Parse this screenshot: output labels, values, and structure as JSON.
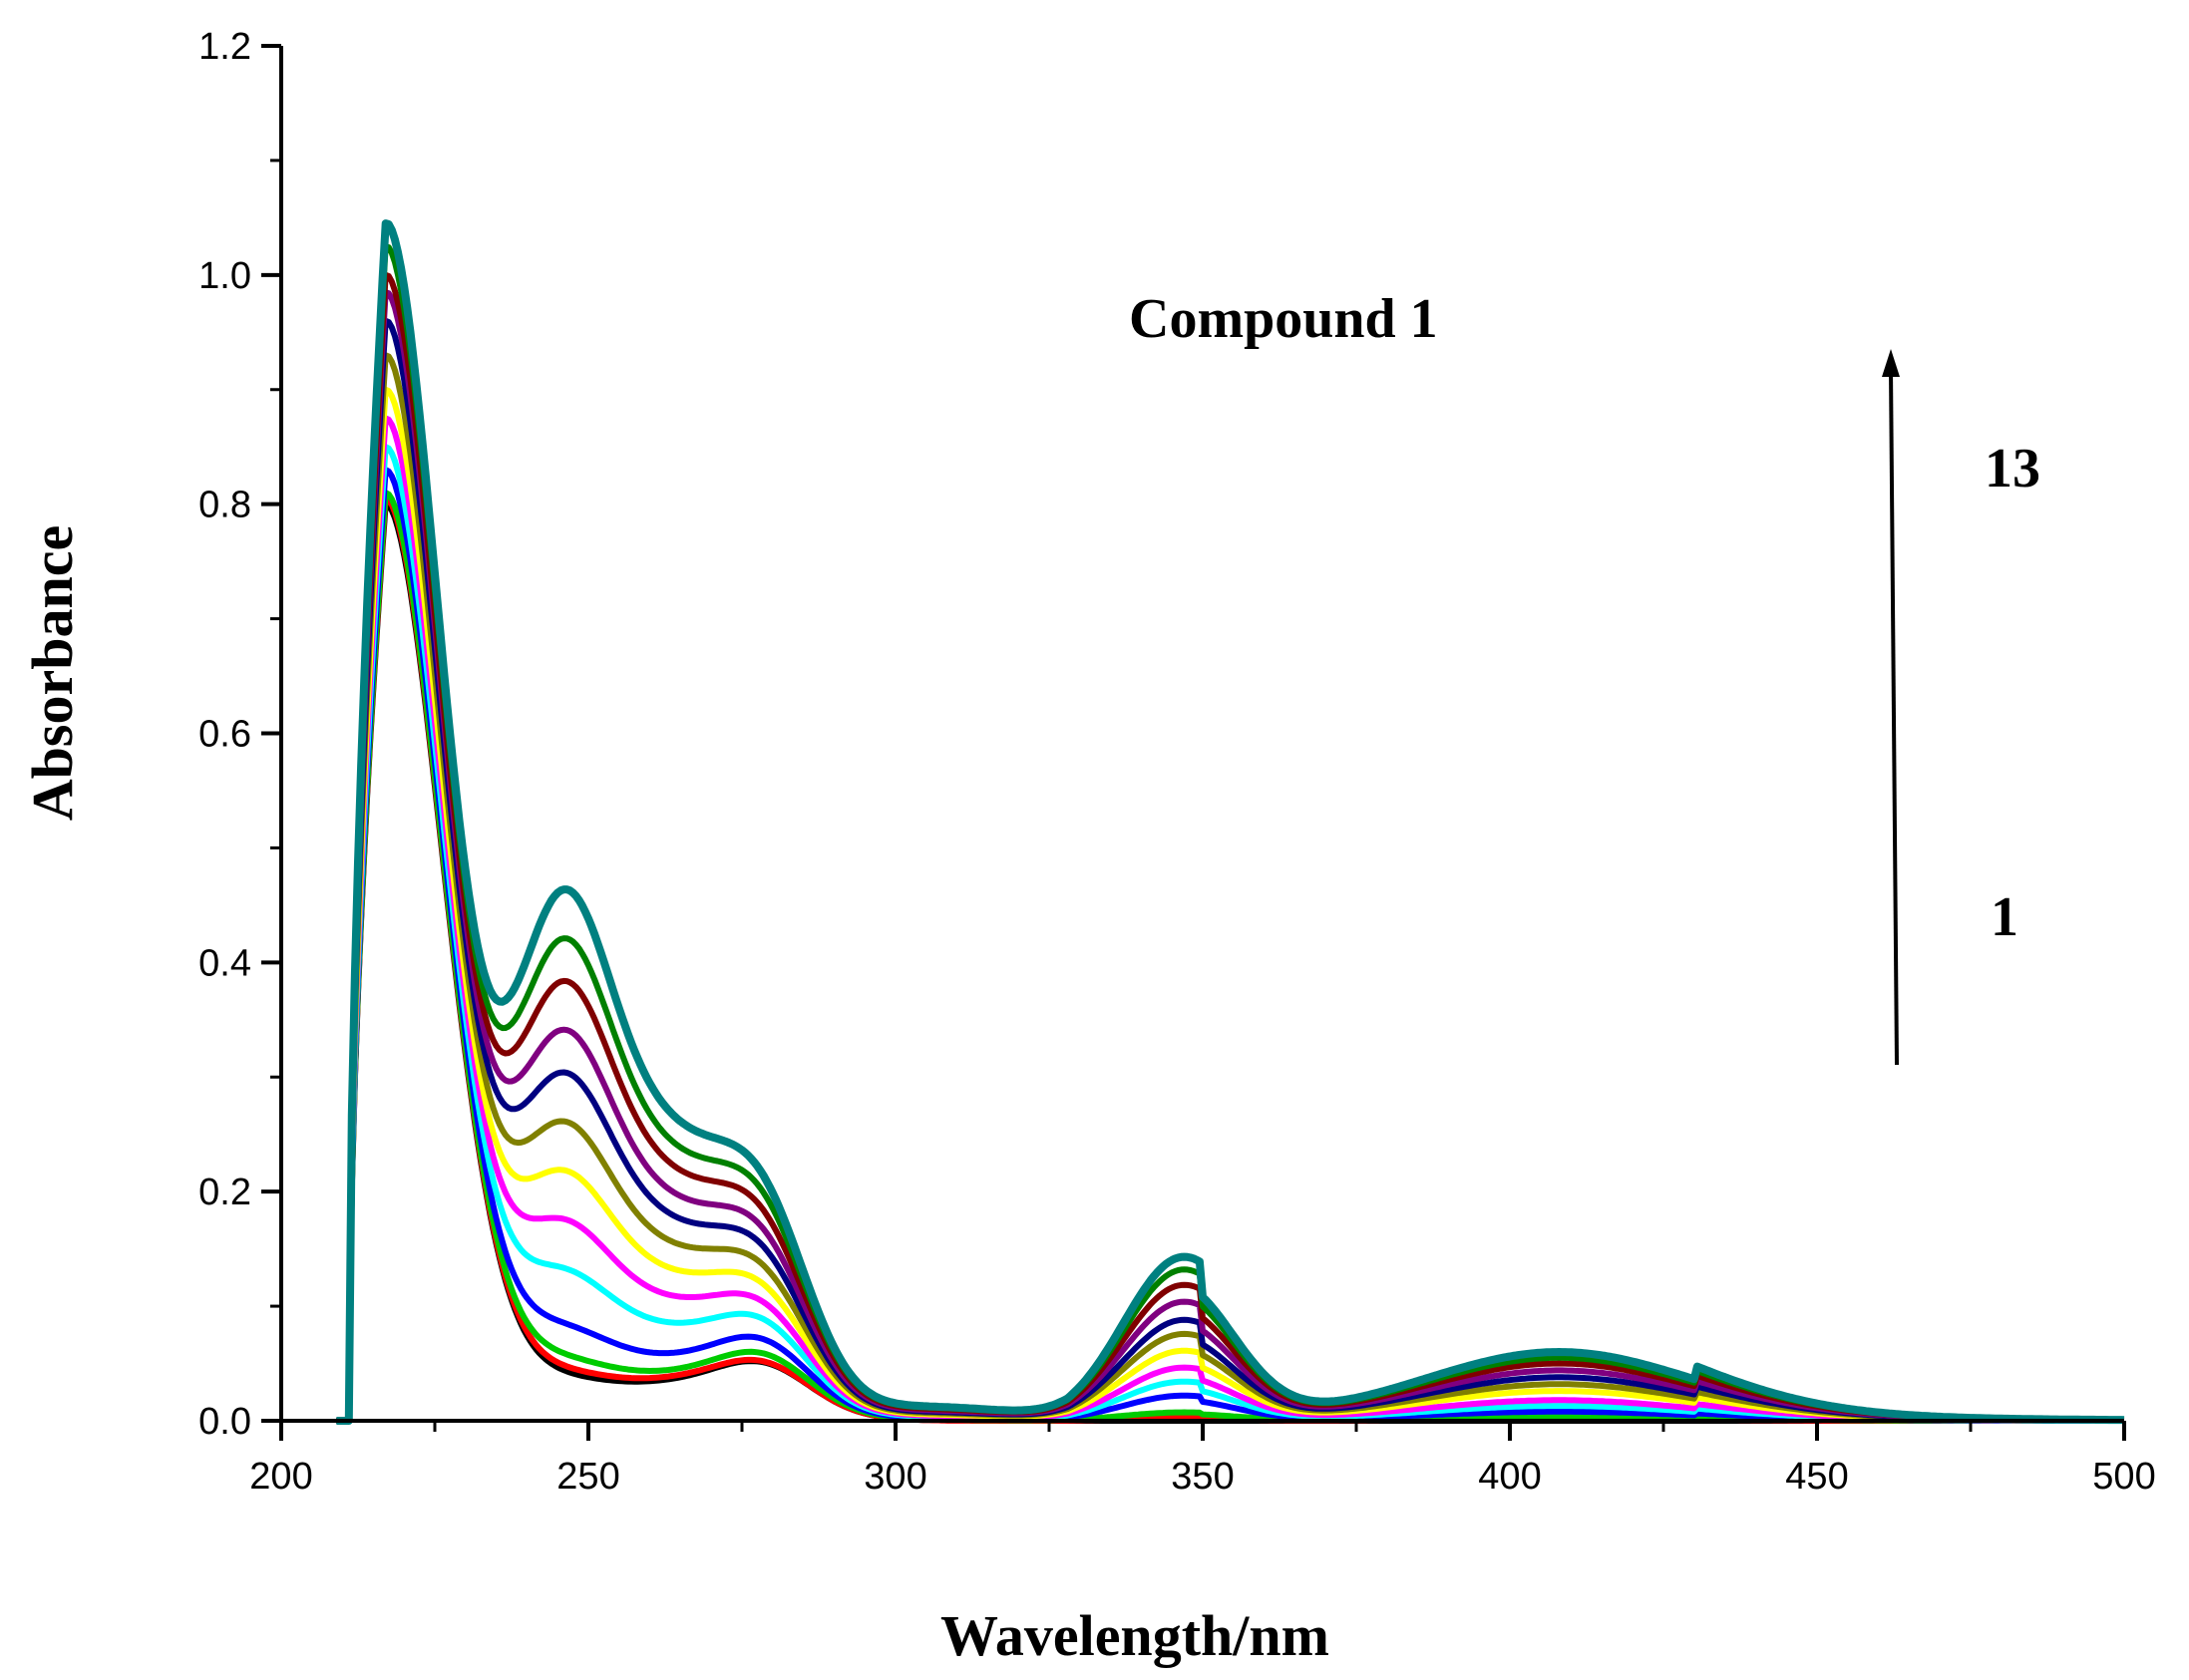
{
  "chart_data": {
    "type": "line",
    "title": "",
    "xlabel": "Wavelength/nm",
    "ylabel": "Absorbance",
    "xlim": [
      200,
      500
    ],
    "ylim": [
      0.0,
      1.2
    ],
    "x_ticks": [
      "200",
      "250",
      "300",
      "350",
      "400",
      "450",
      "500"
    ],
    "y_ticks": [
      "0.0",
      "0.2",
      "0.4",
      "0.6",
      "0.8",
      "1.0",
      "1.2"
    ],
    "grid": false,
    "legend": "none",
    "annotations": {
      "compound": "Compound 1",
      "arrow_start": "1",
      "arrow_end": "13"
    },
    "features": {
      "peak1_x": 217,
      "shoulder_x": 245,
      "shoulder2_x": 279,
      "band350_x": 346,
      "band400_x": 408
    },
    "series": [
      {
        "color": "#000000",
        "p1": 0.8,
        "sh": 0.026,
        "b3": 0.0,
        "b4": 0.0,
        "f": 0.0
      },
      {
        "color": "#ff0000",
        "p1": 0.805,
        "sh": 0.03,
        "b3": 0.002,
        "b4": 0.002,
        "f": 0.0
      },
      {
        "color": "#00cc00",
        "p1": 0.81,
        "sh": 0.04,
        "b3": 0.006,
        "b4": 0.004,
        "f": 0.06
      },
      {
        "color": "#0000ff",
        "p1": 0.83,
        "sh": 0.065,
        "b3": 0.018,
        "b4": 0.008,
        "f": 0.15
      },
      {
        "color": "#00ffff",
        "p1": 0.85,
        "sh": 0.11,
        "b3": 0.028,
        "b4": 0.013,
        "f": 0.25
      },
      {
        "color": "#ff00ff",
        "p1": 0.875,
        "sh": 0.15,
        "b3": 0.038,
        "b4": 0.018,
        "f": 0.33
      },
      {
        "color": "#ffff00",
        "p1": 0.9,
        "sh": 0.19,
        "b3": 0.05,
        "b4": 0.026,
        "f": 0.42
      },
      {
        "color": "#808000",
        "p1": 0.93,
        "sh": 0.23,
        "b3": 0.062,
        "b4": 0.032,
        "f": 0.52
      },
      {
        "color": "#000080",
        "p1": 0.96,
        "sh": 0.27,
        "b3": 0.072,
        "b4": 0.038,
        "f": 0.62
      },
      {
        "color": "#800080",
        "p1": 0.985,
        "sh": 0.305,
        "b3": 0.085,
        "b4": 0.044,
        "f": 0.72
      },
      {
        "color": "#800000",
        "p1": 1.0,
        "sh": 0.345,
        "b3": 0.097,
        "b4": 0.05,
        "f": 0.82
      },
      {
        "color": "#008000",
        "p1": 1.025,
        "sh": 0.38,
        "b3": 0.108,
        "b4": 0.055,
        "f": 0.92
      },
      {
        "color": "#008080",
        "p1": 1.045,
        "sh": 0.42,
        "b3": 0.117,
        "b4": 0.06,
        "f": 1.0
      }
    ]
  }
}
